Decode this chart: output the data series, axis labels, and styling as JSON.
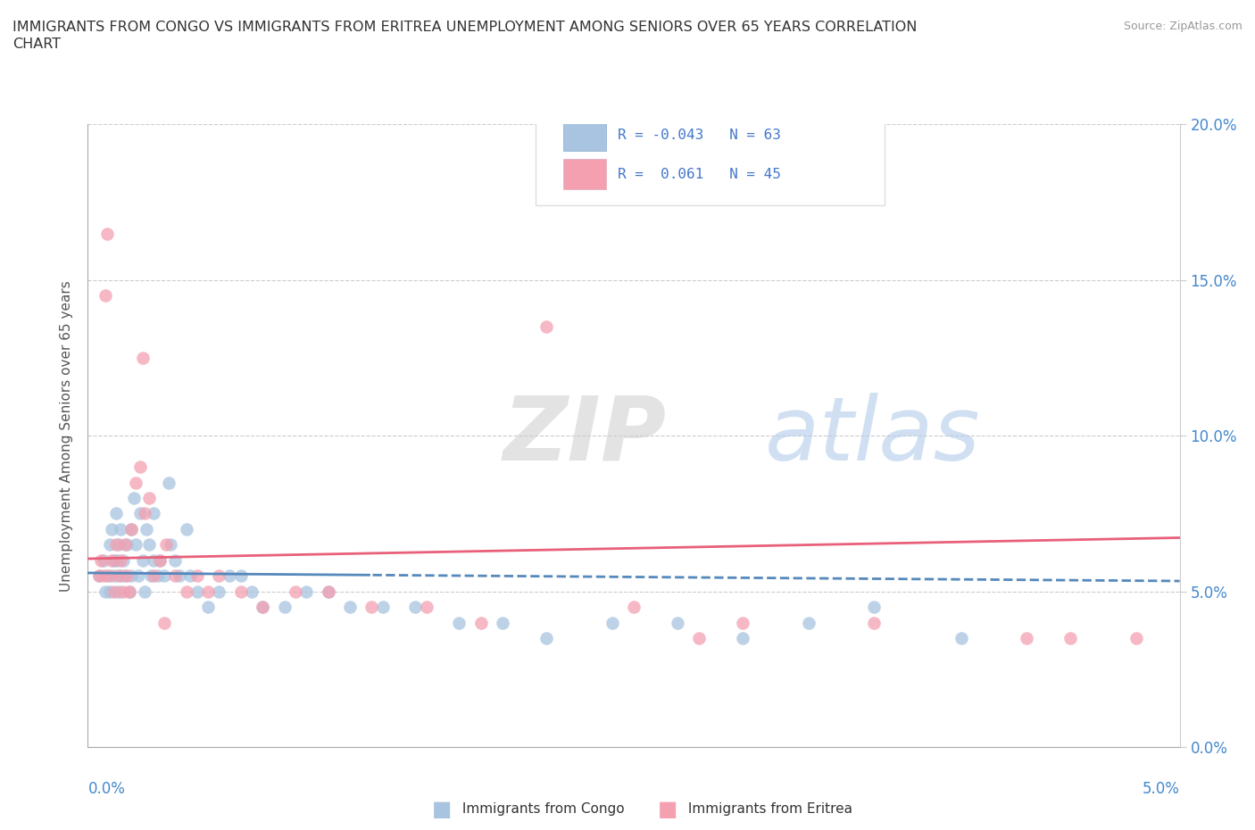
{
  "title_line1": "IMMIGRANTS FROM CONGO VS IMMIGRANTS FROM ERITREA UNEMPLOYMENT AMONG SENIORS OVER 65 YEARS CORRELATION",
  "title_line2": "CHART",
  "source": "Source: ZipAtlas.com",
  "ylabel": "Unemployment Among Seniors over 65 years",
  "ytick_labels": [
    "0.0%",
    "5.0%",
    "10.0%",
    "15.0%",
    "20.0%"
  ],
  "ytick_values": [
    0.0,
    5.0,
    10.0,
    15.0,
    20.0
  ],
  "xlim": [
    0.0,
    5.0
  ],
  "ylim": [
    0.0,
    20.0
  ],
  "congo_R": -0.043,
  "congo_N": 63,
  "eritrea_R": 0.061,
  "eritrea_N": 45,
  "congo_color": "#a8c4e0",
  "eritrea_color": "#f4a0b0",
  "congo_line_color": "#5588bb",
  "eritrea_line_color": "#e8607a",
  "legend_label_congo": "Immigrants from Congo",
  "legend_label_eritrea": "Immigrants from Eritrea",
  "watermark_zip": "ZIP",
  "watermark_atlas": "atlas",
  "congo_scatter_x": [
    0.05,
    0.07,
    0.08,
    0.09,
    0.1,
    0.1,
    0.11,
    0.12,
    0.12,
    0.13,
    0.13,
    0.14,
    0.14,
    0.15,
    0.15,
    0.16,
    0.17,
    0.18,
    0.19,
    0.2,
    0.2,
    0.21,
    0.22,
    0.23,
    0.24,
    0.25,
    0.26,
    0.27,
    0.28,
    0.29,
    0.3,
    0.3,
    0.32,
    0.33,
    0.35,
    0.37,
    0.38,
    0.4,
    0.42,
    0.45,
    0.47,
    0.5,
    0.55,
    0.6,
    0.65,
    0.7,
    0.75,
    0.8,
    0.9,
    1.0,
    1.1,
    1.2,
    1.35,
    1.5,
    1.7,
    1.9,
    2.1,
    2.4,
    2.7,
    3.0,
    3.3,
    3.6,
    4.0
  ],
  "congo_scatter_y": [
    5.5,
    6.0,
    5.0,
    5.5,
    6.5,
    5.0,
    7.0,
    6.0,
    5.5,
    7.5,
    6.0,
    5.0,
    6.5,
    5.5,
    7.0,
    6.0,
    5.5,
    6.5,
    5.0,
    7.0,
    5.5,
    8.0,
    6.5,
    5.5,
    7.5,
    6.0,
    5.0,
    7.0,
    6.5,
    5.5,
    6.0,
    7.5,
    5.5,
    6.0,
    5.5,
    8.5,
    6.5,
    6.0,
    5.5,
    7.0,
    5.5,
    5.0,
    4.5,
    5.0,
    5.5,
    5.5,
    5.0,
    4.5,
    4.5,
    5.0,
    5.0,
    4.5,
    4.5,
    4.5,
    4.0,
    4.0,
    3.5,
    4.0,
    4.0,
    3.5,
    4.0,
    4.5,
    3.5
  ],
  "eritrea_scatter_x": [
    0.05,
    0.06,
    0.07,
    0.08,
    0.09,
    0.1,
    0.11,
    0.12,
    0.13,
    0.14,
    0.15,
    0.16,
    0.17,
    0.18,
    0.19,
    0.2,
    0.22,
    0.24,
    0.26,
    0.28,
    0.3,
    0.33,
    0.36,
    0.4,
    0.45,
    0.5,
    0.55,
    0.6,
    0.7,
    0.8,
    0.95,
    1.1,
    1.3,
    1.55,
    1.8,
    2.1,
    2.5,
    3.0,
    3.6,
    4.3,
    4.8,
    0.25,
    0.35,
    2.8,
    4.5
  ],
  "eritrea_scatter_y": [
    5.5,
    6.0,
    5.5,
    14.5,
    16.5,
    5.5,
    6.0,
    5.0,
    6.5,
    5.5,
    6.0,
    5.0,
    6.5,
    5.5,
    5.0,
    7.0,
    8.5,
    9.0,
    7.5,
    8.0,
    5.5,
    6.0,
    6.5,
    5.5,
    5.0,
    5.5,
    5.0,
    5.5,
    5.0,
    4.5,
    5.0,
    5.0,
    4.5,
    4.5,
    4.0,
    13.5,
    4.5,
    4.0,
    4.0,
    3.5,
    3.5,
    12.5,
    4.0,
    3.5,
    3.5
  ]
}
